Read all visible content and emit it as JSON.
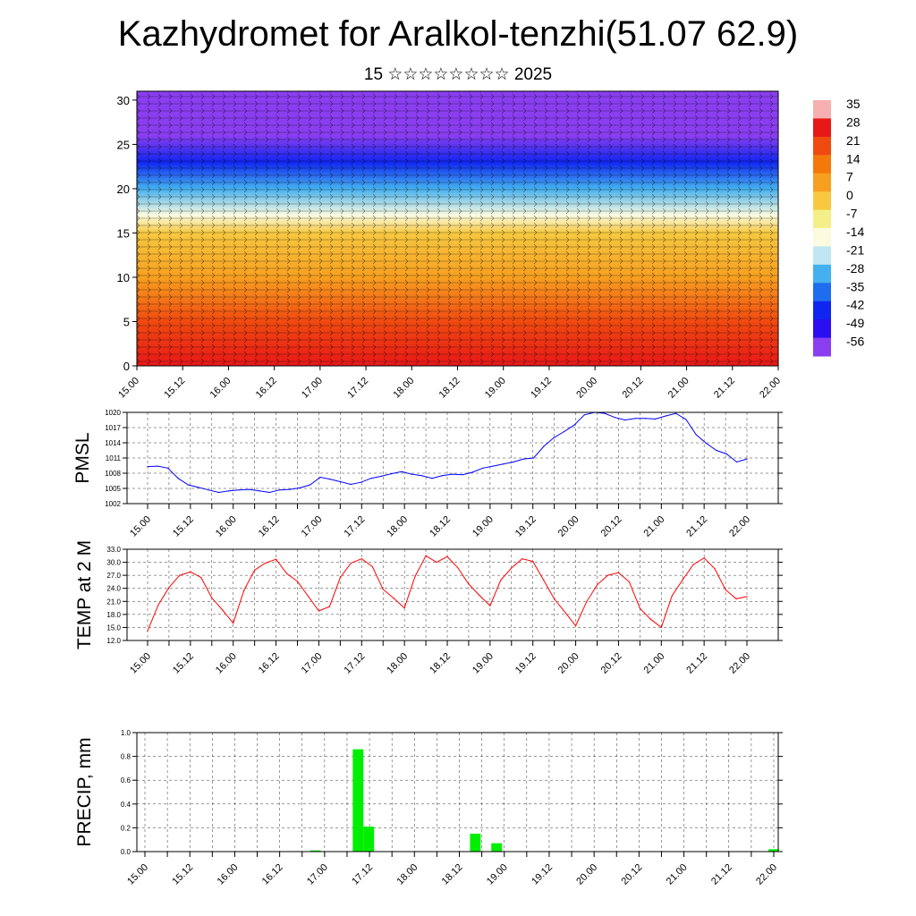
{
  "header": {
    "title": "Kazhydromet for Aralkol-tenzhi(51.07 62.9)",
    "subtitle": "15 ☆☆☆☆☆☆☆☆ 2025"
  },
  "colors": {
    "pmsl_line": "#0000ff",
    "temp_line": "#ff0000",
    "precip_bar": "#00ee00",
    "grid": "#000000"
  },
  "colorbar": {
    "labels": [
      "35",
      "28",
      "21",
      "14",
      "7",
      "0",
      "-7",
      "-14",
      "-21",
      "-28",
      "-35",
      "-42",
      "-49",
      "-56"
    ],
    "colors": [
      "#f6b0b0",
      "#e81818",
      "#f04a10",
      "#f5780a",
      "#f7a020",
      "#f7c840",
      "#f4ef88",
      "#fbfbe0",
      "#bfe6f2",
      "#44b0ef",
      "#1f6cf0",
      "#1026f0",
      "#2a10f0",
      "#8a3ef0"
    ]
  },
  "chart_data": [
    {
      "type": "heatmap",
      "title": "",
      "xlabel": "",
      "ylabel": "",
      "x_tick_labels": [
        "15.00",
        "15.12",
        "16.00",
        "16.12",
        "17.00",
        "17.12",
        "18.00",
        "18.12",
        "19.00",
        "19.12",
        "20.00",
        "20.12",
        "21.00",
        "21.12",
        "22.00"
      ],
      "y_ticks": [
        0,
        5,
        10,
        15,
        20,
        25,
        30
      ],
      "ylim": [
        0,
        31
      ],
      "value_range": [
        -56,
        35
      ],
      "level_temperature_profile": [
        {
          "level": 0,
          "value": 30
        },
        {
          "level": 5,
          "value": 21
        },
        {
          "level": 10,
          "value": 10
        },
        {
          "level": 15,
          "value": -3
        },
        {
          "level": 17,
          "value": -14
        },
        {
          "level": 20,
          "value": -28
        },
        {
          "level": 23,
          "value": -45
        },
        {
          "level": 26,
          "value": -55
        },
        {
          "level": 31,
          "value": -56
        }
      ]
    },
    {
      "type": "line",
      "title": "",
      "ylabel": "PMSL",
      "x_tick_labels": [
        "15.00",
        "15.12",
        "16.00",
        "16.12",
        "17.00",
        "17.12",
        "18.00",
        "18.12",
        "19.00",
        "19.12",
        "20.00",
        "20.12",
        "21.00",
        "21.12",
        "22.00"
      ],
      "y_ticks": [
        "1002",
        "1005",
        "1008",
        "1011",
        "1014",
        "1017",
        "1020"
      ],
      "ylim": [
        1002,
        1020
      ],
      "grid": true,
      "series": [
        {
          "values": [
            1009.3,
            1009.4,
            1009,
            1007,
            1005.7,
            1005.2,
            1004.7,
            1004.2,
            1004.5,
            1004.7,
            1004.8,
            1004.5,
            1004.2,
            1004.7,
            1004.8,
            1005.1,
            1005.7,
            1007.2,
            1006.8,
            1006.3,
            1005.8,
            1006.2,
            1007,
            1007.4,
            1007.9,
            1008.3,
            1007.8,
            1007.5,
            1007,
            1007.5,
            1007.8,
            1007.7,
            1008.2,
            1009,
            1009.4,
            1009.8,
            1010.2,
            1010.8,
            1011,
            1013.3,
            1015,
            1016.2,
            1017.5,
            1019.5,
            1020,
            1019.8,
            1019,
            1018.5,
            1018.8,
            1018.8,
            1018.7,
            1019.3,
            1019.8,
            1018.6,
            1015.6,
            1013.9,
            1012.5,
            1011.8,
            1010.2,
            1010.8
          ]
        }
      ]
    },
    {
      "type": "line",
      "title": "",
      "ylabel": "TEMP at 2 M",
      "x_tick_labels": [
        "15.00",
        "15.12",
        "16.00",
        "16.12",
        "17.00",
        "17.12",
        "18.00",
        "18.12",
        "19.00",
        "19.12",
        "20.00",
        "20.12",
        "21.00",
        "21.12",
        "22.00"
      ],
      "y_ticks": [
        "12.0",
        "15.0",
        "18.0",
        "21.0",
        "24.0",
        "27.0",
        "30.0",
        "33.0"
      ],
      "ylim": [
        12,
        33
      ],
      "grid": true,
      "series": [
        {
          "values": [
            14.2,
            20.2,
            24.2,
            27,
            27.8,
            26.5,
            21.8,
            19,
            16,
            23.5,
            28.2,
            29.8,
            30.7,
            27.4,
            25.6,
            22.2,
            18.8,
            19.8,
            26.5,
            29.8,
            30.8,
            29,
            23.8,
            21.7,
            19.5,
            26.8,
            31.5,
            30,
            31.3,
            28.7,
            25,
            22.4,
            20,
            25.9,
            28.7,
            30.8,
            30.2,
            25.9,
            21.6,
            18.5,
            15.4,
            20.8,
            24.8,
            27,
            27.6,
            25.5,
            19.4,
            16.9,
            15,
            22.3,
            26,
            29.5,
            31,
            28.5,
            23.7,
            21.6,
            22.1
          ]
        }
      ]
    },
    {
      "type": "bar",
      "title": "",
      "ylabel": "PRECIP, mm",
      "x_tick_labels": [
        "15.00",
        "15.12",
        "16.00",
        "16.12",
        "17.00",
        "17.12",
        "18.00",
        "18.12",
        "19.00",
        "19.12",
        "20.00",
        "20.12",
        "21.00",
        "21.12",
        "22.00"
      ],
      "y_ticks": [
        "0.0",
        "0.2",
        "0.4",
        "0.6",
        "0.8",
        "1.0"
      ],
      "ylim": [
        0,
        1.0
      ],
      "grid": true,
      "series": [
        {
          "values": [
            0,
            0,
            0,
            0,
            0,
            0,
            0,
            0,
            0,
            0,
            0,
            0,
            0,
            0,
            0,
            0,
            0.01,
            0,
            0,
            0,
            0.86,
            0.21,
            0,
            0,
            0,
            0,
            0,
            0,
            0,
            0,
            0,
            0.15,
            0,
            0.07,
            0,
            0,
            0,
            0,
            0,
            0,
            0,
            0,
            0,
            0,
            0,
            0,
            0,
            0,
            0,
            0,
            0,
            0,
            0,
            0,
            0,
            0,
            0,
            0,
            0,
            0.02
          ]
        }
      ]
    }
  ]
}
